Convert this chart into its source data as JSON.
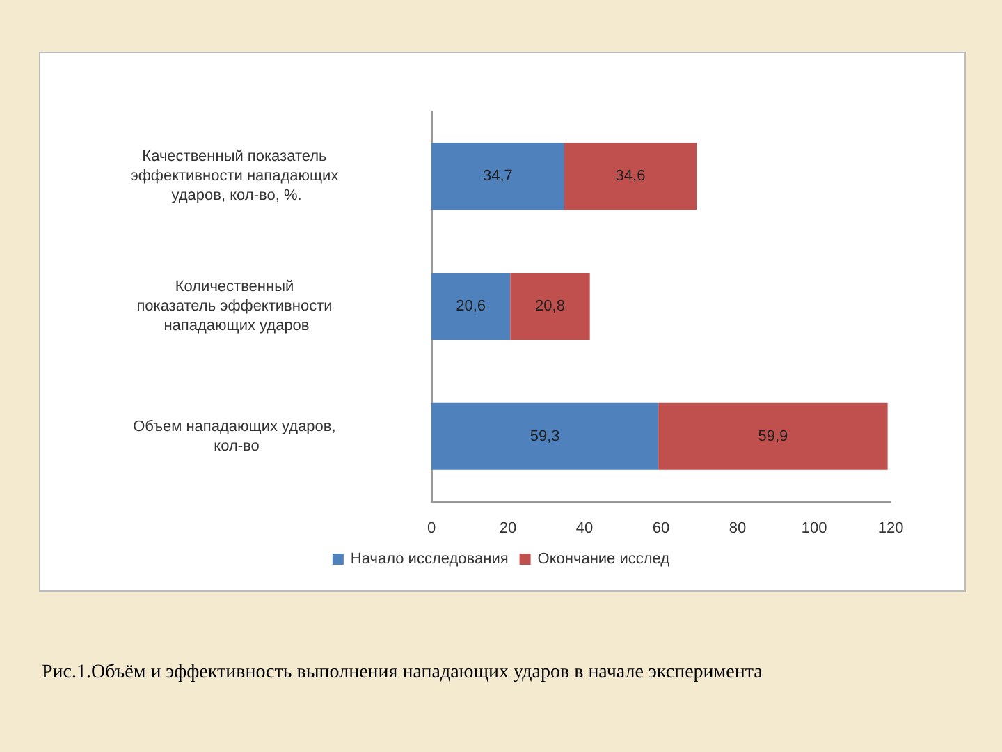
{
  "chart_data": {
    "type": "bar",
    "orientation": "horizontal",
    "stacked": true,
    "categories": [
      "Качественный показатель эффективности нападающих ударов, кол-во, %.",
      "Количественный показатель эффективности нападающих ударов",
      "Объем нападающих ударов, кол-во"
    ],
    "series": [
      {
        "name": "Начало исследования",
        "color": "#4f81bd",
        "values": [
          34.7,
          20.6,
          59.3
        ],
        "value_labels": [
          "34,7",
          "20,6",
          "59,3"
        ]
      },
      {
        "name": "Окончание исслед",
        "color": "#c0504d",
        "values": [
          34.6,
          20.8,
          59.9
        ],
        "value_labels": [
          "34,6",
          "20,8",
          "59,9"
        ]
      }
    ],
    "xlim": [
      0,
      120
    ],
    "xticks": [
      0,
      20,
      40,
      60,
      80,
      100,
      120
    ],
    "grid": false,
    "legend": "bottom",
    "annotations": [
      "Рис.1.Объём и эффективность выполнения нападающих ударов в начале эксперимента"
    ]
  }
}
